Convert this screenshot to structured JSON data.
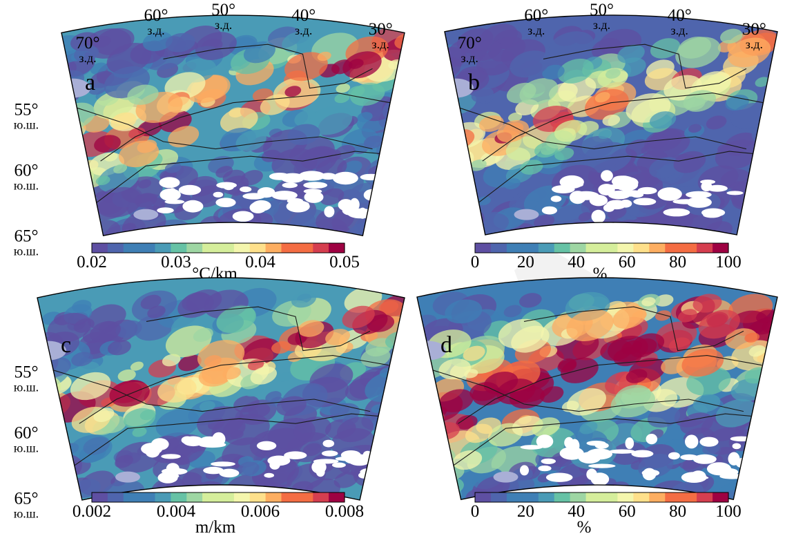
{
  "panels": [
    {
      "id": "a",
      "letter": "a",
      "colorbar": {
        "ticks": [
          "0.02",
          "0.03",
          "0.04",
          "0.05"
        ],
        "unit": "°C/km",
        "min": 0.02,
        "max": 0.05
      },
      "lon_labels": [
        [
          "70°",
          "з.д."
        ],
        [
          "60°",
          "з.д."
        ],
        [
          "50°",
          "з.д."
        ],
        [
          "40°",
          "з.д."
        ],
        [
          "30°",
          "з.д."
        ]
      ],
      "lat_labels": [
        [
          "55°",
          "ю.ш."
        ],
        [
          "60°",
          "ю.ш."
        ],
        [
          "65°",
          "ю.ш."
        ]
      ]
    },
    {
      "id": "b",
      "letter": "b",
      "colorbar": {
        "ticks": [
          "0",
          "20",
          "40",
          "60",
          "80",
          "100"
        ],
        "unit": "%",
        "min": 0,
        "max": 100
      },
      "lon_labels": [
        [
          "70°",
          "з.д."
        ],
        [
          "60°",
          "з.д."
        ],
        [
          "50°",
          "з.д."
        ],
        [
          "40°",
          "з.д."
        ],
        [
          "30°",
          "з.д."
        ]
      ],
      "lat_labels": []
    },
    {
      "id": "c",
      "letter": "c",
      "colorbar": {
        "ticks": [
          "0.002",
          "0.004",
          "0.006",
          "0.008"
        ],
        "unit": "m/km",
        "min": 0.002,
        "max": 0.008
      },
      "lon_labels": [],
      "lat_labels": [
        [
          "55°",
          "ю.ш."
        ],
        [
          "60°",
          "ю.ш."
        ],
        [
          "65°",
          "ю.ш."
        ]
      ]
    },
    {
      "id": "d",
      "letter": "d",
      "colorbar": {
        "ticks": [
          "0",
          "20",
          "40",
          "60",
          "80",
          "100"
        ],
        "unit": "%",
        "min": 0,
        "max": 100
      },
      "lon_labels": [],
      "lat_labels": []
    }
  ],
  "colormap": [
    "#5e4fa2",
    "#4f65ad",
    "#3f7fb5",
    "#4a9bb6",
    "#66c2a5",
    "#9ed6a3",
    "#d5ee9b",
    "#f4f6ad",
    "#fee08b",
    "#fdae61",
    "#f46d43",
    "#d53e4f",
    "#9e0142"
  ],
  "colors": {
    "land": "#a9afd6",
    "no_data": "#ffffff",
    "contour": "#1a1a1a",
    "frame": "#000000"
  }
}
